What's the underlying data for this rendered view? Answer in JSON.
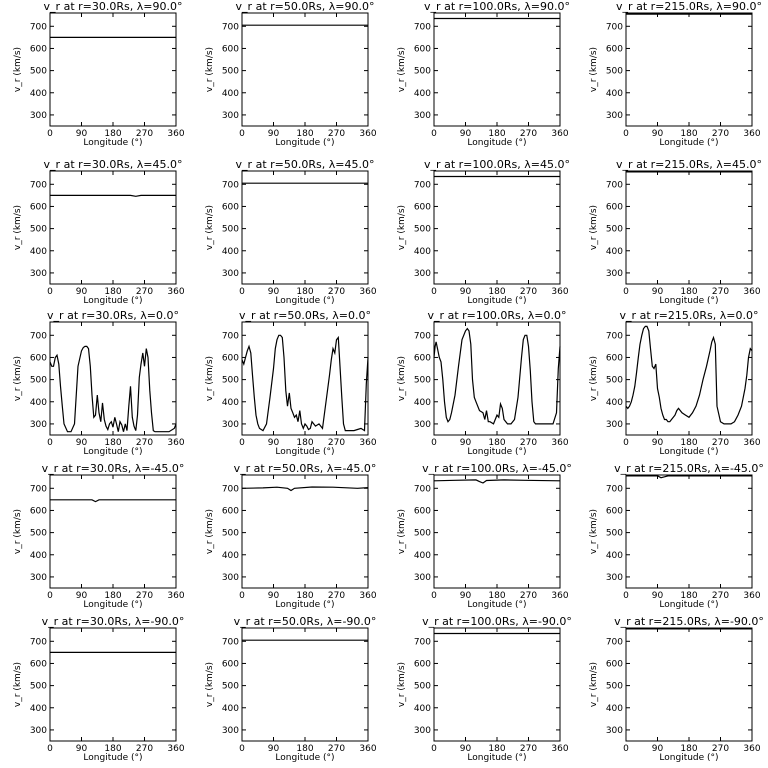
{
  "chart_data": [
    {
      "type": "line",
      "title": "v_r at r=30.0Rs, λ=90.0°",
      "xlabel": "Longitude (°)",
      "ylabel": "v_r (km/s)",
      "xlim": [
        0,
        360
      ],
      "ylim": [
        250,
        760
      ],
      "x": [
        0,
        360
      ],
      "y": [
        650,
        650
      ]
    },
    {
      "type": "line",
      "title": "v_r at r=50.0Rs, λ=90.0°",
      "xlabel": "Longitude (°)",
      "ylabel": "v_r (km/s)",
      "xlim": [
        0,
        360
      ],
      "ylim": [
        250,
        760
      ],
      "x": [
        0,
        360
      ],
      "y": [
        705,
        705
      ]
    },
    {
      "type": "line",
      "title": "v_r at r=100.0Rs, λ=90.0°",
      "xlabel": "Longitude (°)",
      "ylabel": "v_r (km/s)",
      "xlim": [
        0,
        360
      ],
      "ylim": [
        250,
        760
      ],
      "x": [
        0,
        360
      ],
      "y": [
        735,
        735
      ]
    },
    {
      "type": "line",
      "title": "v_r at r=215.0Rs, λ=90.0°",
      "xlabel": "Longitude (°)",
      "ylabel": "v_r (km/s)",
      "xlim": [
        0,
        360
      ],
      "ylim": [
        250,
        760
      ],
      "x": [
        0,
        360
      ],
      "y": [
        755,
        755
      ]
    },
    {
      "type": "line",
      "title": "v_r at r=30.0Rs, λ=45.0°",
      "xlabel": "Longitude (°)",
      "ylabel": "v_r (km/s)",
      "xlim": [
        0,
        360
      ],
      "ylim": [
        250,
        760
      ],
      "x": [
        0,
        230,
        245,
        260,
        360
      ],
      "y": [
        650,
        650,
        646,
        650,
        650
      ]
    },
    {
      "type": "line",
      "title": "v_r at r=50.0Rs, λ=45.0°",
      "xlabel": "Longitude (°)",
      "ylabel": "v_r (km/s)",
      "xlim": [
        0,
        360
      ],
      "ylim": [
        250,
        760
      ],
      "x": [
        0,
        360
      ],
      "y": [
        705,
        705
      ]
    },
    {
      "type": "line",
      "title": "v_r at r=100.0Rs, λ=45.0°",
      "xlabel": "Longitude (°)",
      "ylabel": "v_r (km/s)",
      "xlim": [
        0,
        360
      ],
      "ylim": [
        250,
        760
      ],
      "x": [
        0,
        360
      ],
      "y": [
        735,
        735
      ]
    },
    {
      "type": "line",
      "title": "v_r at r=215.0Rs, λ=45.0°",
      "xlabel": "Longitude (°)",
      "ylabel": "v_r (km/s)",
      "xlim": [
        0,
        360
      ],
      "ylim": [
        250,
        760
      ],
      "x": [
        0,
        360
      ],
      "y": [
        756,
        756
      ]
    },
    {
      "type": "line",
      "title": "v_r at r=30.0Rs, λ=0.0°",
      "xlabel": "Longitude (°)",
      "ylabel": "v_r (km/s)",
      "xlim": [
        0,
        360
      ],
      "ylim": [
        250,
        760
      ],
      "x": [
        0,
        5,
        10,
        15,
        20,
        25,
        30,
        35,
        40,
        50,
        60,
        70,
        80,
        90,
        95,
        100,
        105,
        110,
        115,
        120,
        125,
        130,
        135,
        140,
        145,
        150,
        155,
        160,
        165,
        170,
        175,
        180,
        185,
        190,
        195,
        200,
        205,
        210,
        215,
        220,
        225,
        230,
        235,
        240,
        245,
        250,
        255,
        260,
        265,
        270,
        275,
        280,
        285,
        290,
        295,
        300,
        320,
        340,
        355,
        360
      ],
      "y": [
        580,
        560,
        560,
        600,
        610,
        570,
        470,
        380,
        300,
        265,
        265,
        300,
        560,
        630,
        645,
        650,
        650,
        640,
        560,
        430,
        330,
        340,
        430,
        350,
        310,
        395,
        320,
        290,
        275,
        300,
        310,
        285,
        330,
        300,
        265,
        310,
        295,
        265,
        300,
        270,
        380,
        470,
        330,
        290,
        270,
        340,
        510,
        570,
        620,
        560,
        640,
        600,
        450,
        350,
        270,
        265,
        265,
        265,
        280,
        300
      ]
    },
    {
      "type": "line",
      "title": "v_r at r=50.0Rs, λ=0.0°",
      "xlabel": "Longitude (°)",
      "ylabel": "v_r (km/s)",
      "xlim": [
        0,
        360
      ],
      "ylim": [
        250,
        760
      ],
      "x": [
        0,
        5,
        10,
        15,
        20,
        25,
        30,
        35,
        40,
        45,
        50,
        60,
        70,
        80,
        90,
        95,
        100,
        105,
        110,
        115,
        120,
        125,
        130,
        135,
        140,
        145,
        150,
        155,
        160,
        165,
        170,
        175,
        180,
        185,
        190,
        195,
        200,
        210,
        220,
        230,
        240,
        250,
        255,
        260,
        265,
        270,
        275,
        280,
        285,
        290,
        295,
        300,
        310,
        320,
        330,
        340,
        350,
        355,
        360
      ],
      "y": [
        590,
        570,
        600,
        630,
        650,
        620,
        520,
        420,
        340,
        300,
        280,
        270,
        300,
        420,
        550,
        640,
        680,
        700,
        700,
        690,
        600,
        450,
        380,
        440,
        370,
        350,
        330,
        340,
        310,
        360,
        300,
        280,
        300,
        290,
        275,
        280,
        310,
        290,
        300,
        280,
        400,
        520,
        590,
        640,
        620,
        680,
        690,
        560,
        420,
        300,
        270,
        270,
        270,
        270,
        275,
        280,
        270,
        480,
        600
      ]
    },
    {
      "type": "line",
      "title": "v_r at r=100.0Rs, λ=0.0°",
      "xlabel": "Longitude (°)",
      "ylabel": "v_r (km/s)",
      "xlim": [
        0,
        360
      ],
      "ylim": [
        250,
        760
      ],
      "x": [
        0,
        3,
        6,
        10,
        15,
        20,
        25,
        30,
        35,
        40,
        45,
        50,
        60,
        70,
        80,
        90,
        95,
        100,
        105,
        110,
        115,
        120,
        130,
        140,
        145,
        150,
        155,
        160,
        170,
        180,
        185,
        190,
        195,
        200,
        210,
        220,
        230,
        240,
        250,
        255,
        260,
        265,
        270,
        275,
        280,
        285,
        290,
        300,
        320,
        340,
        350,
        355,
        360
      ],
      "y": [
        600,
        650,
        670,
        640,
        600,
        580,
        500,
        400,
        330,
        310,
        320,
        350,
        430,
        560,
        680,
        720,
        730,
        720,
        660,
        500,
        420,
        400,
        360,
        350,
        320,
        360,
        310,
        310,
        300,
        340,
        330,
        390,
        370,
        320,
        300,
        300,
        320,
        420,
        600,
        680,
        700,
        700,
        650,
        540,
        400,
        310,
        300,
        300,
        300,
        300,
        350,
        550,
        650
      ]
    },
    {
      "type": "line",
      "title": "v_r at r=215.0Rs, λ=0.0°",
      "xlabel": "Longitude (°)",
      "ylabel": "v_r (km/s)",
      "xlim": [
        0,
        360
      ],
      "ylim": [
        250,
        760
      ],
      "x": [
        0,
        5,
        10,
        15,
        20,
        25,
        30,
        35,
        40,
        45,
        50,
        55,
        60,
        65,
        70,
        75,
        80,
        85,
        90,
        95,
        100,
        105,
        110,
        115,
        120,
        125,
        130,
        135,
        140,
        145,
        150,
        160,
        170,
        180,
        190,
        200,
        210,
        220,
        230,
        240,
        245,
        250,
        255,
        260,
        270,
        280,
        290,
        300,
        310,
        320,
        330,
        340,
        345,
        350,
        355,
        360
      ],
      "y": [
        380,
        370,
        380,
        400,
        430,
        470,
        530,
        600,
        660,
        700,
        730,
        740,
        740,
        720,
        640,
        560,
        550,
        570,
        460,
        420,
        370,
        340,
        320,
        320,
        310,
        310,
        320,
        330,
        340,
        360,
        370,
        350,
        340,
        330,
        350,
        380,
        430,
        500,
        560,
        630,
        670,
        690,
        660,
        380,
        310,
        300,
        300,
        300,
        310,
        340,
        380,
        460,
        520,
        600,
        640,
        630
      ]
    },
    {
      "type": "line",
      "title": "v_r at r=30.0Rs, λ=-45.0°",
      "xlabel": "Longitude (°)",
      "ylabel": "v_r (km/s)",
      "xlim": [
        0,
        360
      ],
      "ylim": [
        250,
        760
      ],
      "x": [
        0,
        120,
        130,
        140,
        360
      ],
      "y": [
        648,
        648,
        640,
        648,
        648
      ]
    },
    {
      "type": "line",
      "title": "v_r at r=50.0Rs, λ=-45.0°",
      "xlabel": "Longitude (°)",
      "ylabel": "v_r (km/s)",
      "xlim": [
        0,
        360
      ],
      "ylim": [
        250,
        760
      ],
      "x": [
        0,
        60,
        100,
        130,
        140,
        150,
        200,
        260,
        330,
        360
      ],
      "y": [
        700,
        702,
        705,
        700,
        690,
        700,
        706,
        705,
        700,
        703
      ]
    },
    {
      "type": "line",
      "title": "v_r at r=100.0Rs, λ=-45.0°",
      "xlabel": "Longitude (°)",
      "ylabel": "v_r (km/s)",
      "xlim": [
        0,
        360
      ],
      "ylim": [
        250,
        760
      ],
      "x": [
        0,
        60,
        120,
        130,
        140,
        150,
        200,
        260,
        360
      ],
      "y": [
        734,
        736,
        738,
        730,
        724,
        735,
        738,
        736,
        734
      ]
    },
    {
      "type": "line",
      "title": "v_r at r=215.0Rs, λ=-45.0°",
      "xlabel": "Longitude (°)",
      "ylabel": "v_r (km/s)",
      "xlim": [
        0,
        360
      ],
      "ylim": [
        250,
        760
      ],
      "x": [
        0,
        90,
        100,
        110,
        120,
        360
      ],
      "y": [
        756,
        756,
        748,
        752,
        756,
        756
      ]
    },
    {
      "type": "line",
      "title": "v_r at r=30.0Rs, λ=-90.0°",
      "xlabel": "Longitude (°)",
      "ylabel": "v_r (km/s)",
      "xlim": [
        0,
        360
      ],
      "ylim": [
        250,
        760
      ],
      "x": [
        0,
        360
      ],
      "y": [
        650,
        650
      ]
    },
    {
      "type": "line",
      "title": "v_r at r=50.0Rs, λ=-90.0°",
      "xlabel": "Longitude (°)",
      "ylabel": "v_r (km/s)",
      "xlim": [
        0,
        360
      ],
      "ylim": [
        250,
        760
      ],
      "x": [
        0,
        360
      ],
      "y": [
        705,
        705
      ]
    },
    {
      "type": "line",
      "title": "v_r at r=100.0Rs, λ=-90.0°",
      "xlabel": "Longitude (°)",
      "ylabel": "v_r (km/s)",
      "xlim": [
        0,
        360
      ],
      "ylim": [
        250,
        760
      ],
      "x": [
        0,
        360
      ],
      "y": [
        735,
        735
      ]
    },
    {
      "type": "line",
      "title": "v_r at r=215.0Rs, λ=-90.0°",
      "xlabel": "Longitude (°)",
      "ylabel": "v_r (km/s)",
      "xlim": [
        0,
        360
      ],
      "ylim": [
        250,
        760
      ],
      "x": [
        0,
        360
      ],
      "y": [
        756,
        756
      ]
    }
  ],
  "axes": {
    "x_ticks": [
      "0",
      "90",
      "180",
      "270",
      "360"
    ],
    "y_ticks": [
      "300",
      "400",
      "500",
      "600",
      "700"
    ],
    "x_tick_values": [
      0,
      90,
      180,
      270,
      360
    ],
    "y_tick_values": [
      300,
      400,
      500,
      600,
      700
    ]
  },
  "colors": {
    "line": "#000000",
    "axes": "#000000",
    "background": "#ffffff"
  }
}
